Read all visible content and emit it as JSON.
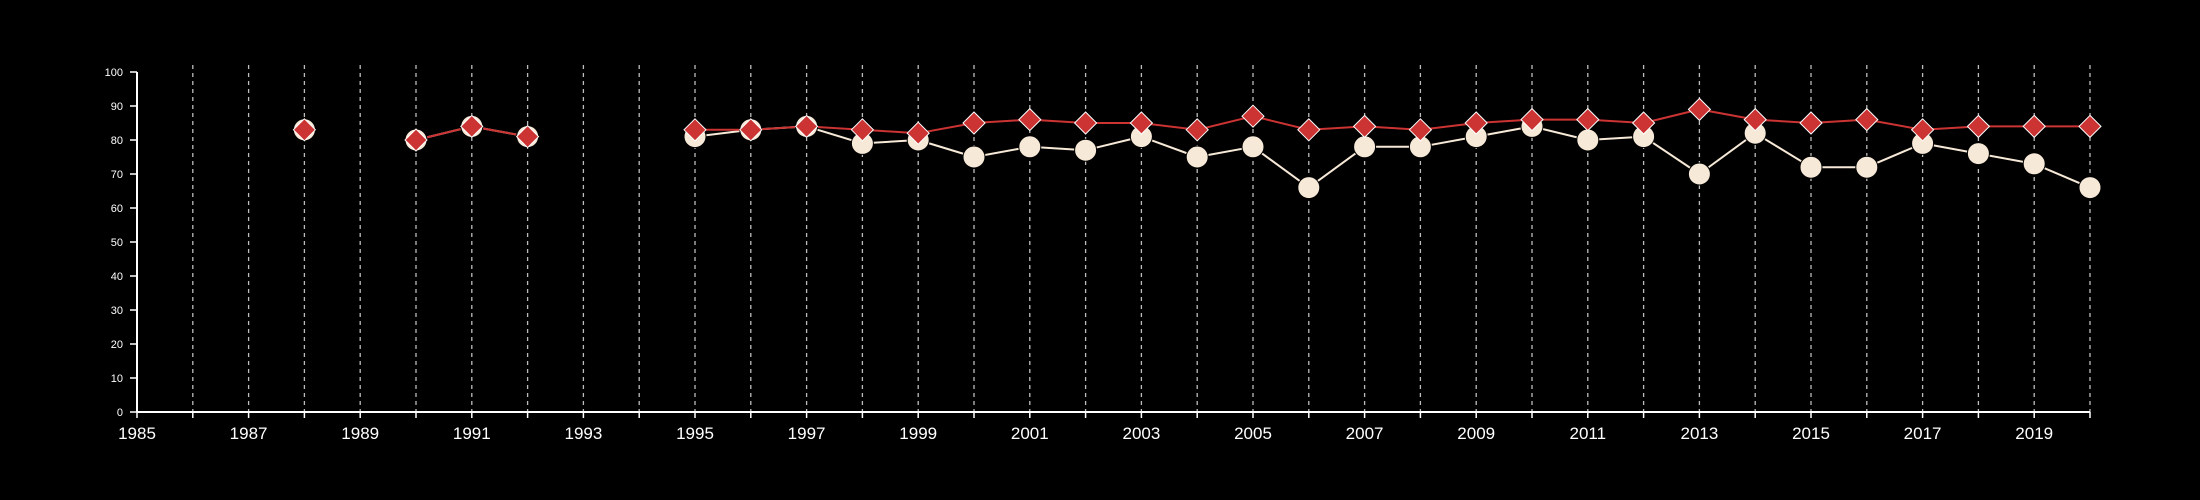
{
  "chart_data": {
    "type": "line",
    "x_ticks": [
      "1985",
      "1987",
      "1989",
      "1991",
      "1993",
      "1995",
      "1997",
      "1999",
      "2001",
      "2003",
      "2005",
      "2007",
      "2009",
      "2011",
      "2013",
      "2015",
      "2017",
      "2019"
    ],
    "y_ticks": [
      "0",
      "10",
      "20",
      "30",
      "40",
      "50",
      "60",
      "70",
      "80",
      "90",
      "100"
    ],
    "xlim": [
      1985,
      2020
    ],
    "ylim": [
      0,
      100
    ],
    "grid": "vertical dashed lines at each year",
    "series": [
      {
        "marker": "circle",
        "color": "#f7e9d7",
        "x": [
          1988,
          1990,
          1991,
          1992,
          1995,
          1996,
          1997,
          1998,
          1999,
          2000,
          2001,
          2002,
          2003,
          2004,
          2005,
          2006,
          2007,
          2008,
          2009,
          2010,
          2011,
          2012,
          2013,
          2014,
          2015,
          2016,
          2017,
          2018,
          2019,
          2020
        ],
        "values": [
          83,
          80,
          84,
          81,
          81,
          83,
          84,
          79,
          80,
          75,
          78,
          77,
          81,
          75,
          78,
          66,
          78,
          78,
          81,
          84,
          80,
          81,
          70,
          82,
          72,
          72,
          79,
          76,
          73,
          66
        ]
      },
      {
        "marker": "diamond",
        "color": "#cc3333",
        "x": [
          1988,
          1990,
          1991,
          1992,
          1995,
          1996,
          1997,
          1998,
          1999,
          2000,
          2001,
          2002,
          2003,
          2004,
          2005,
          2006,
          2007,
          2008,
          2009,
          2010,
          2011,
          2012,
          2013,
          2014,
          2015,
          2016,
          2017,
          2018,
          2019,
          2020
        ],
        "values": [
          83,
          80,
          84,
          81,
          83,
          83,
          84,
          83,
          82,
          85,
          86,
          85,
          85,
          83,
          87,
          83,
          84,
          83,
          85,
          86,
          86,
          85,
          89,
          86,
          85,
          86,
          83,
          84,
          84,
          84
        ]
      }
    ]
  }
}
